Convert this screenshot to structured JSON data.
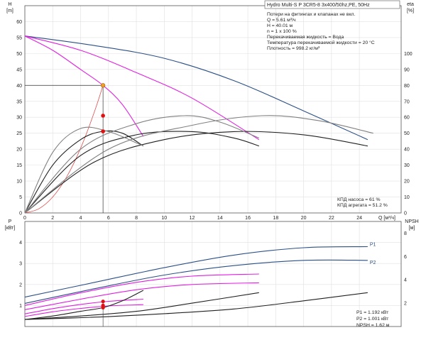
{
  "chart_data": [
    {
      "type": "line",
      "title": "Hydro Multi-S P 3CR5-8 3x400/50hz,PE, 50Hz",
      "info_lines": [
        "Потери на фитингах и клапанах не вкл.",
        "Q = 5.61 м³/ч",
        "H = 40.01 м",
        "n = 1 x 100 %",
        "Перекачиваемая жидкость = Вода",
        "Температура перекачиваемой жидкости = 20 °C",
        "Плотность = 998.2 кг/м³"
      ],
      "efficiency_lines": [
        "КПД насоса = 61 %",
        "КПД агрегата = 51.2 %"
      ],
      "ylabel_left": "H",
      "ylabel_left_unit": "[m]",
      "ylabel_right": "eta",
      "ylabel_right_unit": "[%]",
      "xlabel": "Q [м³/ч]",
      "xlim": [
        0,
        27
      ],
      "ylim_left": [
        0,
        65
      ],
      "ylim_right": [
        0,
        130
      ],
      "xticks": [
        0,
        2,
        4,
        6,
        8,
        10,
        12,
        14,
        16,
        18,
        20,
        22,
        24
      ],
      "yticks_left": [
        0,
        5,
        10,
        15,
        20,
        25,
        30,
        35,
        40,
        45,
        50,
        55,
        60
      ],
      "yticks_right": [
        0,
        10,
        20,
        30,
        40,
        50,
        60,
        70,
        80,
        90,
        100
      ],
      "duty_point": {
        "q": 5.61,
        "h": 40.01
      },
      "series": [
        {
          "role": "head",
          "color": "#2b4f86",
          "x": [
            0,
            5,
            10,
            15,
            20,
            24.6
          ],
          "y": [
            55.5,
            52.5,
            48.5,
            41.5,
            32,
            23
          ]
        },
        {
          "role": "head",
          "color": "#e020e0",
          "x": [
            0,
            4,
            8,
            12,
            16.8
          ],
          "y": [
            55.5,
            51,
            44,
            36,
            23
          ]
        },
        {
          "role": "head",
          "color": "#e020e0",
          "x": [
            0,
            2,
            4,
            5.61,
            7,
            8.5
          ],
          "y": [
            55.5,
            51,
            45,
            40,
            34,
            24
          ]
        },
        {
          "role": "system",
          "color": "#e05050",
          "x": [
            0,
            1,
            2,
            3,
            4,
            5,
            5.61
          ],
          "y": [
            0,
            1.3,
            5,
            11.3,
            20.3,
            31.8,
            40.01
          ]
        },
        {
          "role": "efficiency",
          "color": "#202020",
          "x": [
            0,
            2,
            4,
            5.61,
            7,
            8.5
          ],
          "y_eta": [
            0,
            30,
            46,
            51.2,
            50,
            42
          ]
        },
        {
          "role": "efficiency",
          "color": "#202020",
          "x": [
            0,
            4,
            8,
            12,
            15,
            16.8
          ],
          "y_eta": [
            0,
            36,
            49,
            51,
            47,
            42
          ]
        },
        {
          "role": "efficiency",
          "color": "#202020",
          "x": [
            0,
            5,
            10,
            15,
            20,
            24.6
          ],
          "y_eta": [
            0,
            32,
            46,
            51,
            49,
            42
          ]
        },
        {
          "role": "efficiency",
          "color": "#808080",
          "x": [
            0,
            2,
            4,
            6,
            8,
            8.5
          ],
          "y_eta": [
            0,
            38,
            53,
            51,
            44,
            42
          ]
        },
        {
          "role": "efficiency",
          "color": "#808080",
          "x": [
            0,
            4,
            8,
            11.5,
            14,
            16.8
          ],
          "y_eta": [
            0,
            40,
            56,
            61,
            57,
            47
          ]
        },
        {
          "role": "efficiency",
          "color": "#808080",
          "x": [
            0,
            6,
            12,
            17,
            21,
            25
          ],
          "y_eta": [
            0,
            40,
            55,
            61,
            58,
            50
          ]
        }
      ],
      "markers": [
        {
          "x": 5.61,
          "y": 40.01,
          "color": "#f0a020"
        },
        {
          "x": 5.61,
          "y_eta": 61,
          "color": "#e01010"
        },
        {
          "x": 5.61,
          "y_eta": 51.2,
          "color": "#e01010"
        }
      ]
    },
    {
      "type": "line",
      "ylabel_left": "P",
      "ylabel_left_unit": "[кВт]",
      "ylabel_right": "NPSH",
      "ylabel_right_unit": "[м]",
      "xlim": [
        0,
        27
      ],
      "ylim_left": [
        0,
        5
      ],
      "ylim_right": [
        0,
        9
      ],
      "yticks_left": [
        1,
        2,
        3,
        4
      ],
      "yticks_right": [
        2,
        4,
        6,
        8
      ],
      "readouts": [
        "P1 = 1.192 кВт",
        "P2 = 1.001 кВт",
        "NPSH = 1.62 м"
      ],
      "series": [
        {
          "name": "P1",
          "color": "#2b4f86",
          "x": [
            0,
            5,
            10,
            15,
            20,
            24.6
          ],
          "y": [
            1.4,
            2.1,
            2.8,
            3.4,
            3.75,
            3.8
          ]
        },
        {
          "name": "P2",
          "color": "#2b4f86",
          "x": [
            0,
            5,
            10,
            15,
            20,
            24.6
          ],
          "y": [
            1.1,
            1.8,
            2.45,
            2.9,
            3.15,
            3.15
          ]
        },
        {
          "color": "#e020e0",
          "x": [
            0,
            4,
            8,
            12,
            16.8
          ],
          "y": [
            1.0,
            1.6,
            2.1,
            2.4,
            2.5
          ]
        },
        {
          "color": "#e020e0",
          "x": [
            0,
            4,
            8,
            12,
            16.8
          ],
          "y": [
            0.8,
            1.3,
            1.75,
            2.0,
            2.08
          ]
        },
        {
          "color": "#e020e0",
          "x": [
            0,
            2,
            4,
            6,
            8.5
          ],
          "y": [
            0.6,
            0.85,
            1.05,
            1.2,
            1.3
          ]
        },
        {
          "color": "#e020e0",
          "x": [
            0,
            2,
            4,
            6,
            8.5
          ],
          "y": [
            0.48,
            0.7,
            0.86,
            0.98,
            1.04
          ]
        },
        {
          "color": "#202020",
          "x": [
            0,
            2,
            4,
            5.61,
            7,
            8.5
          ],
          "y_npsh": [
            0.6,
            0.9,
            1.3,
            1.62,
            2.2,
            3.1
          ]
        },
        {
          "color": "#202020",
          "x": [
            0,
            4,
            8,
            12,
            16.8
          ],
          "y_npsh": [
            0.6,
            0.9,
            1.3,
            2.0,
            2.9
          ]
        },
        {
          "color": "#202020",
          "x": [
            0,
            5,
            10,
            15,
            20,
            24.6
          ],
          "y_npsh": [
            0.6,
            0.8,
            1.1,
            1.5,
            2.2,
            2.9
          ]
        }
      ],
      "markers": [
        {
          "x": 5.61,
          "y": 1.192,
          "color": "#e01010"
        },
        {
          "x": 5.61,
          "y": 1.001,
          "color": "#e01010"
        },
        {
          "x": 5.61,
          "y_npsh": 1.62,
          "color": "#e01010"
        }
      ]
    }
  ]
}
